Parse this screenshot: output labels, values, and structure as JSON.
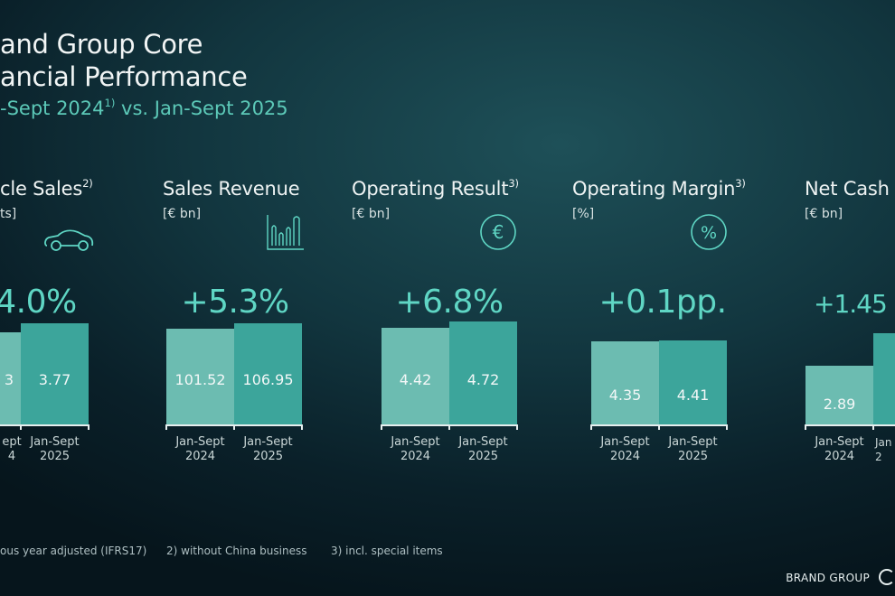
{
  "title": {
    "line1": "and Group Core",
    "line2": "ancial Performance",
    "line3_a": "-Sept 2024",
    "line3_sup": "1)",
    "line3_b": " vs. Jan-Sept 2025"
  },
  "colors": {
    "bar_2024": "#6cbcb1",
    "bar_2025": "#3ca59b",
    "accent": "#5fd6c4",
    "background": "#12363f"
  },
  "chart_data": [
    {
      "type": "bar",
      "title": "cle Sales",
      "title_sup": "2)",
      "unit": "ts]",
      "icon": "car-icon",
      "change": "4.0%",
      "categories": [
        "ept|4",
        "Jan-Sept|2025"
      ],
      "values": [
        null,
        3.77
      ],
      "value_labels": [
        "3",
        "3.77"
      ]
    },
    {
      "type": "bar",
      "title": "Sales Revenue",
      "title_sup": "",
      "unit": "[€ bn]",
      "icon": "bar-chart-icon",
      "change": "+5.3%",
      "categories": [
        "Jan-Sept|2024",
        "Jan-Sept|2025"
      ],
      "values": [
        101.52,
        106.95
      ],
      "value_labels": [
        "101.52",
        "106.95"
      ]
    },
    {
      "type": "bar",
      "title": "Operating Result",
      "title_sup": "3)",
      "unit": "[€ bn]",
      "icon": "euro-icon",
      "change": "+6.8%",
      "categories": [
        "Jan-Sept|2024",
        "Jan-Sept|2025"
      ],
      "values": [
        4.42,
        4.72
      ],
      "value_labels": [
        "4.42",
        "4.72"
      ]
    },
    {
      "type": "bar",
      "title": "Operating Margin",
      "title_sup": "3)",
      "unit": "[%]",
      "icon": "percent-icon",
      "change": "+0.1pp.",
      "categories": [
        "Jan-Sept|2024",
        "Jan-Sept|2025"
      ],
      "values": [
        4.35,
        4.41
      ],
      "value_labels": [
        "4.35",
        "4.41"
      ]
    },
    {
      "type": "bar",
      "title": "Net Cash",
      "title_sup": "",
      "unit": "[€ bn]",
      "icon": "",
      "change": "+1.45",
      "categories": [
        "Jan-Sept|2024",
        "Jan|2"
      ],
      "values": [
        2.89,
        null
      ],
      "value_labels": [
        "2.89",
        ""
      ]
    }
  ],
  "footnotes": [
    "ous year adjusted (IFRS17)",
    "2) without China business",
    "3) incl. special items"
  ],
  "brand": "BRAND GROUP"
}
